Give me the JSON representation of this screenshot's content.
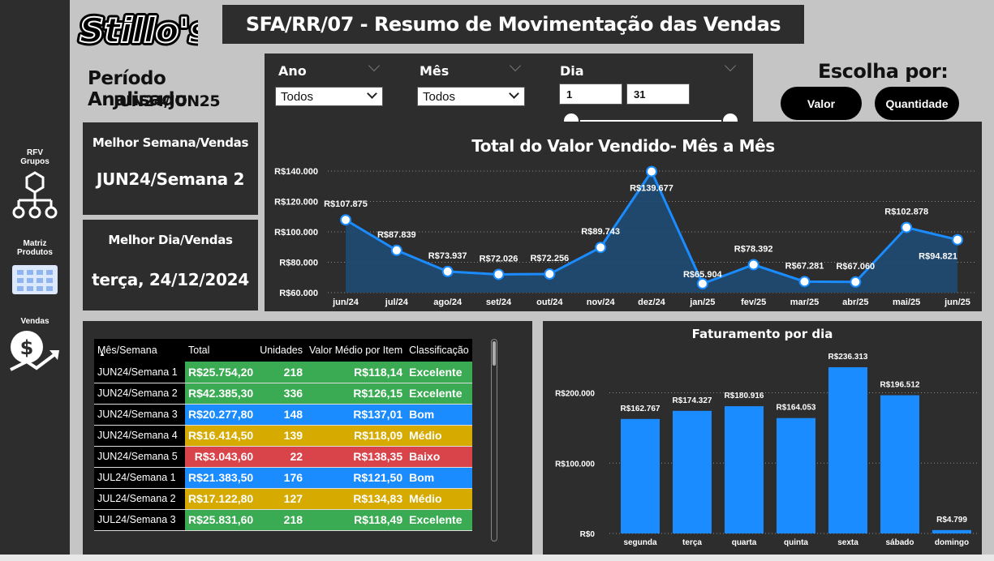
{
  "sidebar": {
    "items": [
      {
        "label_line1": "RFV",
        "label_line2": "Grupos",
        "icon": "network-icon"
      },
      {
        "label_line1": "Matriz",
        "label_line2": "Produtos",
        "icon": "matrix-icon"
      },
      {
        "label_line1": "Vendas",
        "label_line2": "",
        "icon": "money-growth-icon"
      }
    ]
  },
  "logo": {
    "text": "Stillo's"
  },
  "header": {
    "title": "SFA/RR/07 - Resumo de Movimentação das Vendas"
  },
  "periodo": {
    "title": "Período Analisado",
    "value": "JUN24/JUN25"
  },
  "melhor_semana": {
    "title": "Melhor Semana/Vendas",
    "value": "JUN24/Semana 2"
  },
  "melhor_dia": {
    "title": "Melhor Dia/Vendas",
    "value": "terça, 24/12/2024"
  },
  "filters": {
    "ano": {
      "label": "Ano",
      "value": "Todos"
    },
    "mes": {
      "label": "Mês",
      "value": "Todos"
    },
    "dia": {
      "label": "Dia",
      "from": "1",
      "to": "31"
    }
  },
  "escolha": {
    "title": "Escolha por:",
    "valor": "Valor",
    "quantidade": "Quantidade"
  },
  "table": {
    "headers": [
      "Mês/Semana",
      "Total",
      "Unidades",
      "Valor Médio por Item",
      "Classificação"
    ],
    "rows": [
      {
        "period": "JUN24/Semana 1",
        "total": "R$25.754,20",
        "units": "218",
        "avg": "R$118,14",
        "class": "Excelente",
        "color": "#3bab53"
      },
      {
        "period": "JUN24/Semana 2",
        "total": "R$42.385,30",
        "units": "336",
        "avg": "R$126,15",
        "class": "Excelente",
        "color": "#3bab53"
      },
      {
        "period": "JUN24/Semana 3",
        "total": "R$20.277,80",
        "units": "148",
        "avg": "R$137,01",
        "class": "Bom",
        "color": "#1a8cff"
      },
      {
        "period": "JUN24/Semana 4",
        "total": "R$16.414,50",
        "units": "139",
        "avg": "R$118,09",
        "class": "Médio",
        "color": "#d7aa00"
      },
      {
        "period": "JUN24/Semana 5",
        "total": "R$3.043,60",
        "units": "22",
        "avg": "R$138,35",
        "class": "Baixo",
        "color": "#d9434a"
      },
      {
        "period": "JUL24/Semana 1",
        "total": "R$21.383,50",
        "units": "176",
        "avg": "R$121,50",
        "class": "Bom",
        "color": "#1a8cff"
      },
      {
        "period": "JUL24/Semana 2",
        "total": "R$17.122,80",
        "units": "127",
        "avg": "R$134,83",
        "class": "Médio",
        "color": "#d7aa00"
      },
      {
        "period": "JUL24/Semana 3",
        "total": "R$25.831,60",
        "units": "218",
        "avg": "R$118,49",
        "class": "Excelente",
        "color": "#3bab53"
      }
    ]
  },
  "chart_data": [
    {
      "type": "area",
      "title": "Total do Valor Vendido- Mês a Mês",
      "categories": [
        "jun/24",
        "jul/24",
        "ago/24",
        "set/24",
        "out/24",
        "nov/24",
        "dez/24",
        "jan/25",
        "fev/25",
        "mar/25",
        "abr/25",
        "mai/25",
        "jun/25"
      ],
      "values": [
        107875,
        87839,
        73937,
        72026,
        72256,
        89743,
        139677,
        65904,
        78392,
        67281,
        67060,
        102878,
        94821
      ],
      "labels": [
        "R$107.875",
        "R$87.839",
        "R$73.937",
        "R$72.026",
        "R$72.256",
        "R$89.743",
        "R$139.677",
        "R$65.904",
        "R$78.392",
        "R$67.281",
        "R$67.060",
        "R$102.878",
        "R$94.821"
      ],
      "yticks": [
        60000,
        80000,
        100000,
        120000,
        140000
      ],
      "ytick_labels": [
        "R$60.000",
        "R$80.000",
        "R$100.000",
        "R$120.000",
        "R$140.000"
      ],
      "ylim": [
        60000,
        140000
      ],
      "grid": true,
      "color": "#1a8cff"
    },
    {
      "type": "bar",
      "title": "Faturamento por dia",
      "categories": [
        "segunda",
        "terça",
        "quarta",
        "quinta",
        "sexta",
        "sábado",
        "domingo"
      ],
      "values": [
        162767,
        174327,
        180916,
        164053,
        236313,
        196512,
        4799
      ],
      "labels": [
        "R$162.767",
        "R$174.327",
        "R$180.916",
        "R$164.053",
        "R$236.313",
        "R$196.512",
        "R$4.799"
      ],
      "yticks": [
        0,
        100000,
        200000
      ],
      "ytick_labels": [
        "R$0",
        "R$100.000",
        "R$200.000"
      ],
      "ylim": [
        0,
        236313
      ],
      "grid": true,
      "color": "#1a8cff"
    }
  ]
}
